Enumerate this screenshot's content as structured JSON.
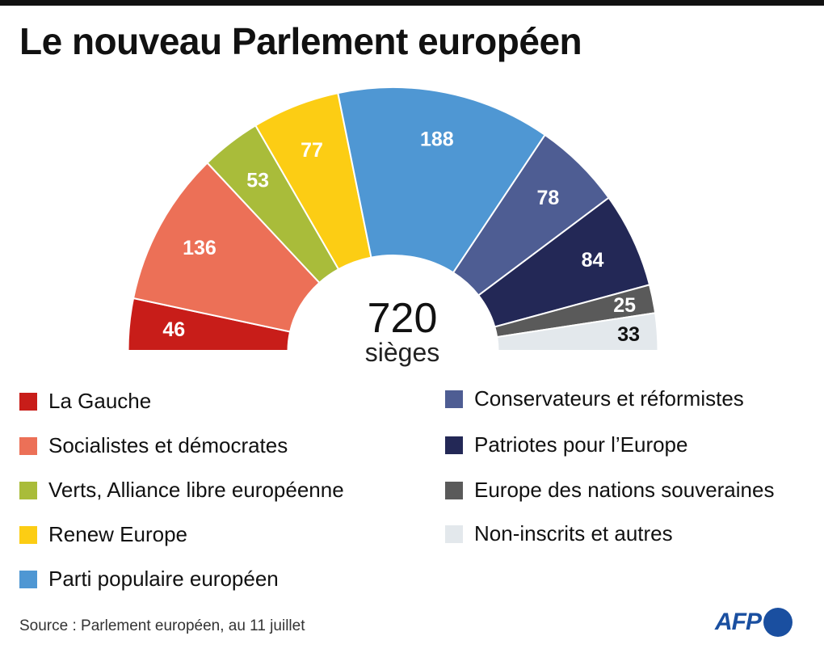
{
  "title": "Le nouveau Parlement européen",
  "chart_data": {
    "type": "pie",
    "subtype": "half-donut (parliament)",
    "title": "Le nouveau Parlement européen",
    "total": "720",
    "total_unit": "sièges",
    "categories": [
      "La Gauche",
      "Socialistes et démocrates",
      "Verts, Alliance libre européenne",
      "Renew Europe",
      "Parti populaire européen",
      "Conservateurs et réformistes",
      "Patriotes pour l’Europe",
      "Europe des nations souveraines",
      "Non-inscrits et autres"
    ],
    "values": [
      46,
      136,
      53,
      77,
      188,
      78,
      84,
      25,
      33
    ],
    "colors": [
      "#c81d19",
      "#ec7057",
      "#a9bc3a",
      "#fccd14",
      "#4f97d3",
      "#4e5d93",
      "#232856",
      "#5a5a5a",
      "#e3e8ec"
    ],
    "label_colors": [
      "#ffffff",
      "#ffffff",
      "#ffffff",
      "#ffffff",
      "#ffffff",
      "#ffffff",
      "#ffffff",
      "#ffffff",
      "#111111"
    ],
    "legend_placement": "bottom"
  },
  "source": "Source : Parlement européen, au 11 juillet",
  "logo": "AFP"
}
